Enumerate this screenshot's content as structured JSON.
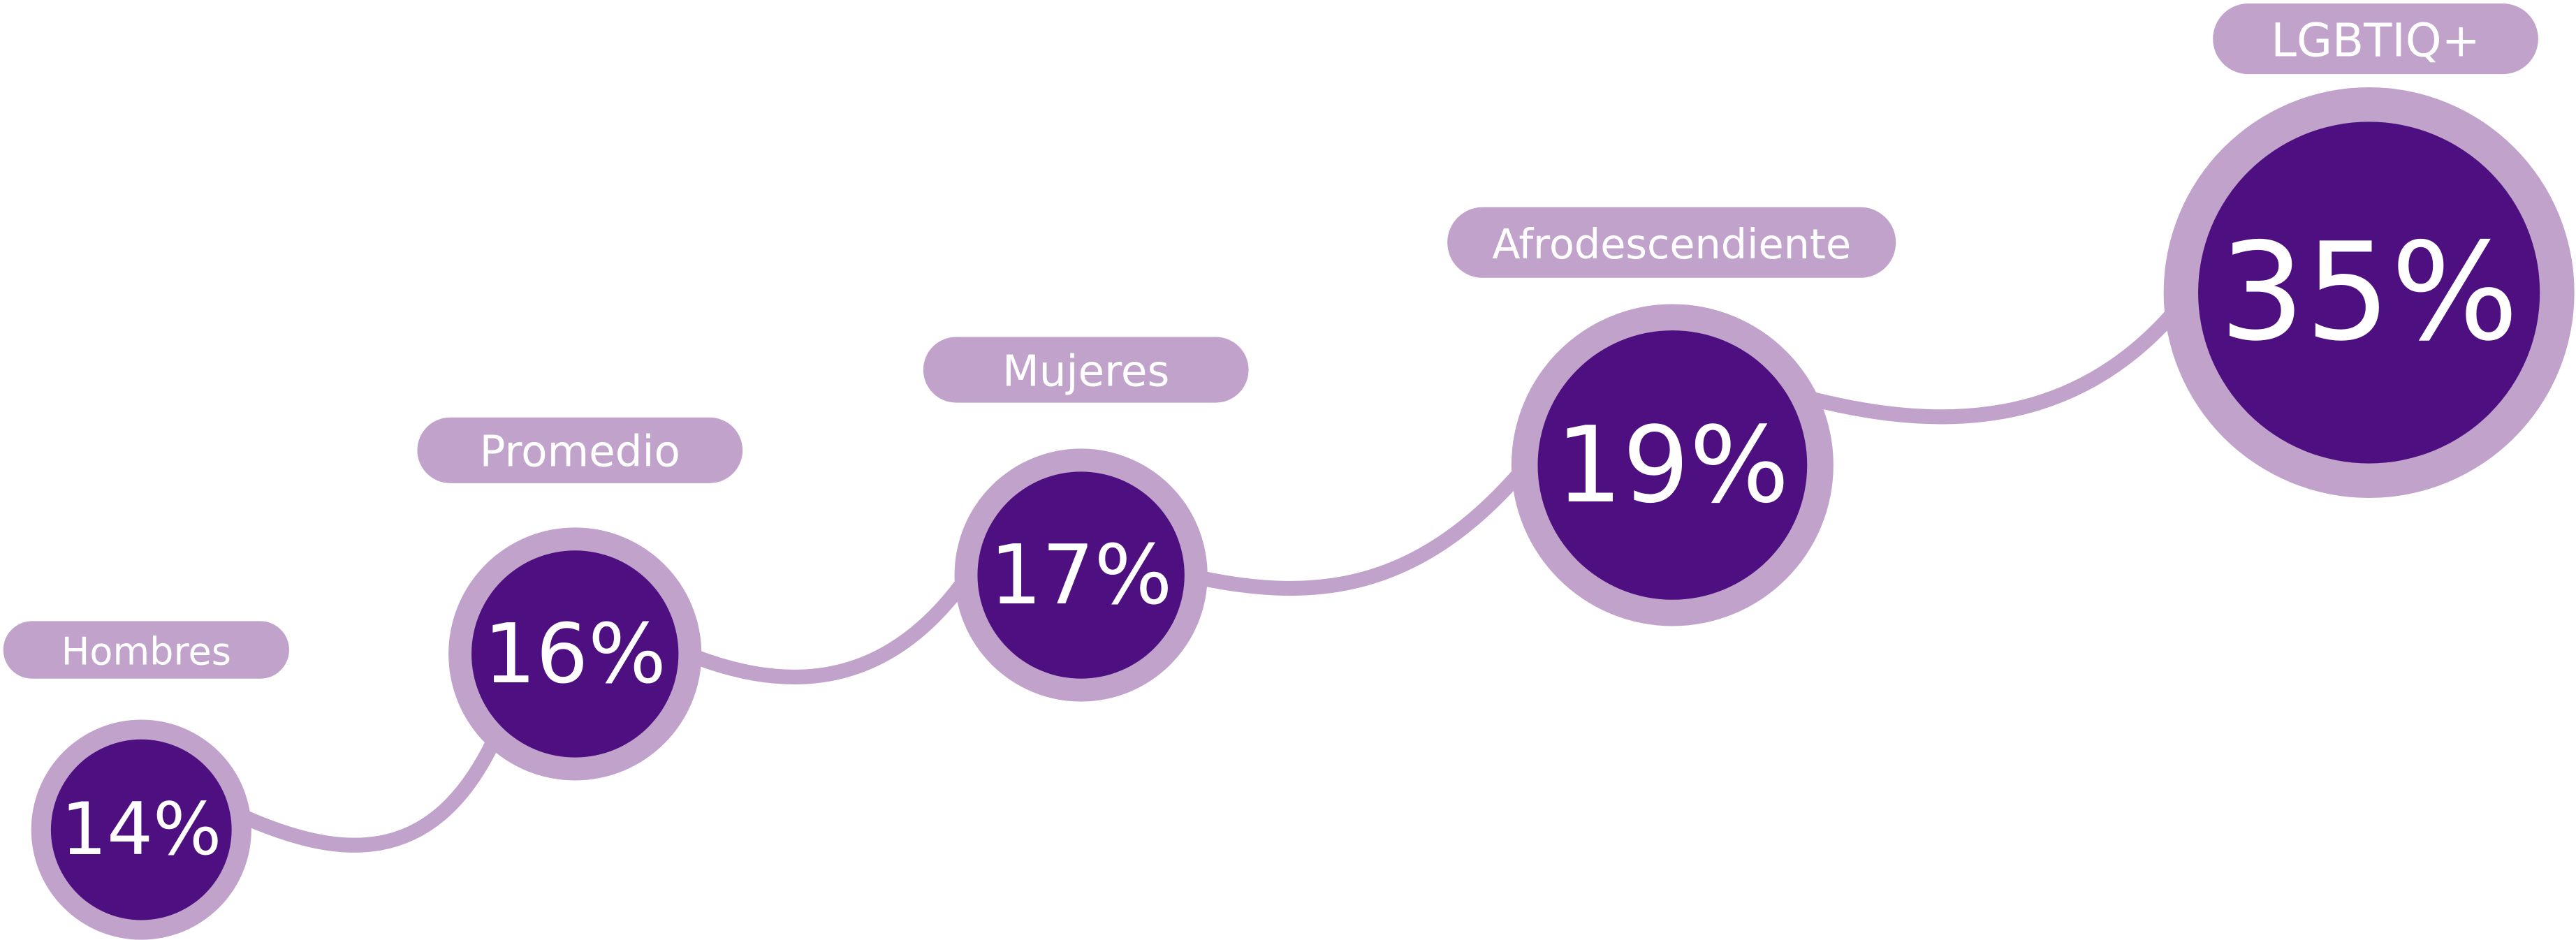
{
  "chart_data": {
    "type": "bubble",
    "categories": [
      "Hombres",
      "Promedio",
      "Mujeres",
      "Afrodescendiente",
      "LGBTIQ+"
    ],
    "values": [
      14,
      16,
      17,
      19,
      35
    ],
    "value_labels": [
      "14%",
      "16%",
      "17%",
      "19%",
      "35%"
    ],
    "ring_color": "#c0a2cb",
    "color": "#4e0f80"
  }
}
